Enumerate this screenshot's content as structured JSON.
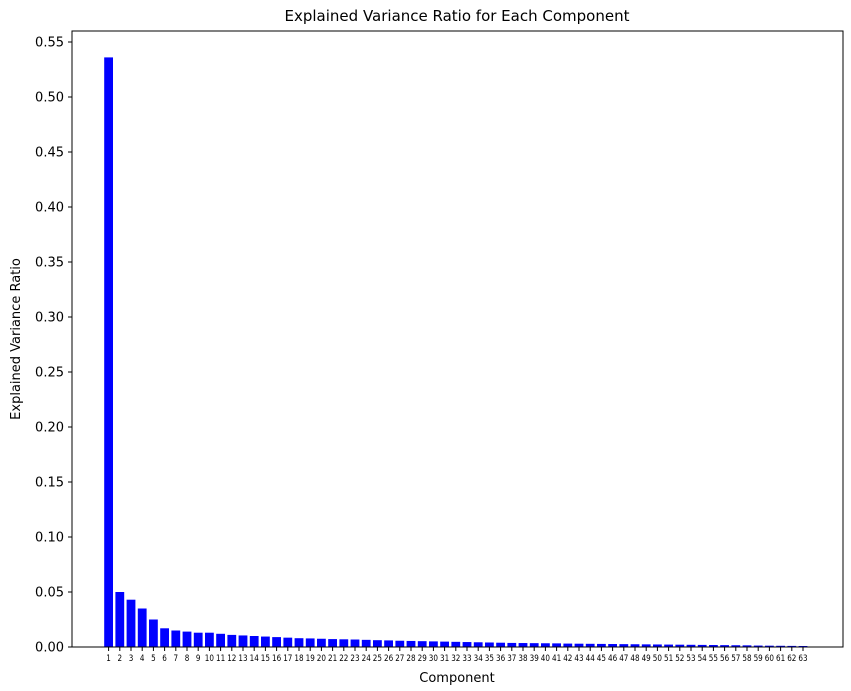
{
  "chart_data": {
    "type": "bar",
    "title": "Explained Variance Ratio for Each Component",
    "xlabel": "Component",
    "ylabel": "Explained Variance Ratio",
    "ylim": [
      0,
      0.56
    ],
    "yticks": [
      0.0,
      0.05,
      0.1,
      0.15,
      0.2,
      0.25,
      0.3,
      0.35,
      0.4,
      0.45,
      0.5,
      0.55
    ],
    "ytick_labels": [
      "0.00",
      "0.05",
      "0.10",
      "0.15",
      "0.20",
      "0.25",
      "0.30",
      "0.35",
      "0.40",
      "0.45",
      "0.50",
      "0.55"
    ],
    "grid": false,
    "bar_color": "#0000ff",
    "categories": [
      "1",
      "2",
      "3",
      "4",
      "5",
      "6",
      "7",
      "8",
      "9",
      "10",
      "11",
      "12",
      "13",
      "14",
      "15",
      "16",
      "17",
      "18",
      "19",
      "20",
      "21",
      "22",
      "23",
      "24",
      "25",
      "26",
      "27",
      "28",
      "29",
      "30",
      "31",
      "32",
      "33",
      "34",
      "35",
      "36",
      "37",
      "38",
      "39",
      "40",
      "41",
      "42",
      "43",
      "44",
      "45",
      "46",
      "47",
      "48",
      "49",
      "50",
      "51",
      "52",
      "53",
      "54",
      "55",
      "56",
      "57",
      "58",
      "59",
      "60",
      "61",
      "62",
      "63"
    ],
    "values": [
      0.536,
      0.05,
      0.043,
      0.035,
      0.025,
      0.017,
      0.015,
      0.014,
      0.013,
      0.013,
      0.012,
      0.011,
      0.0105,
      0.01,
      0.0095,
      0.009,
      0.0085,
      0.008,
      0.0078,
      0.0075,
      0.0072,
      0.007,
      0.0068,
      0.0065,
      0.0062,
      0.006,
      0.0057,
      0.0055,
      0.0053,
      0.0051,
      0.0049,
      0.0047,
      0.0045,
      0.0043,
      0.0041,
      0.0039,
      0.0037,
      0.0036,
      0.0035,
      0.0034,
      0.0033,
      0.0031,
      0.003,
      0.0029,
      0.0028,
      0.0027,
      0.0026,
      0.0025,
      0.0024,
      0.0023,
      0.0022,
      0.0021,
      0.002,
      0.0019,
      0.0018,
      0.0017,
      0.0016,
      0.0015,
      0.0013,
      0.0012,
      0.0011,
      0.001,
      0.0009
    ]
  }
}
